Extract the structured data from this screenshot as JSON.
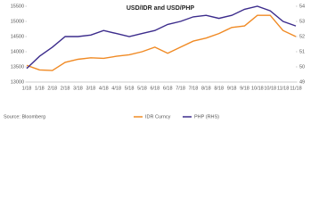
{
  "chart_data": {
    "type": "line",
    "title": "USD/IDR and USD/PHP",
    "source": "Source: Bloomberg",
    "categories": [
      "1/18",
      "1/18",
      "2/18",
      "2/18",
      "3/18",
      "3/18",
      "4/18",
      "4/18",
      "5/18",
      "5/18",
      "6/18",
      "6/18",
      "7/18",
      "7/18",
      "8/18",
      "8/18",
      "9/18",
      "9/18",
      "10/18",
      "10/18",
      "11/18",
      "11/18"
    ],
    "series": [
      {
        "name": "IDR Curncy",
        "color": "#f08a24",
        "values": [
          13550,
          13400,
          13380,
          13650,
          13750,
          13800,
          13780,
          13850,
          13900,
          14000,
          14150,
          13950,
          14150,
          14350,
          14450,
          14600,
          14800,
          14850,
          15200,
          15200,
          14700,
          14500
        ]
      },
      {
        "name": "PHP (RHS)",
        "color": "#3c2c8c",
        "axis": "y2",
        "values": [
          49.9,
          50.7,
          51.3,
          52.0,
          52.0,
          52.1,
          52.4,
          52.2,
          52.0,
          52.2,
          52.4,
          52.8,
          53.0,
          53.3,
          53.4,
          53.2,
          53.4,
          53.8,
          54.0,
          53.7,
          53.0,
          52.7
        ]
      }
    ],
    "ylim": [
      13000,
      15500
    ],
    "yticks": [
      13000,
      13500,
      14000,
      14500,
      15000,
      15500
    ],
    "y2lim": [
      49,
      54
    ],
    "y2ticks": [
      49,
      50,
      51,
      52,
      53,
      54
    ],
    "legend": "bottom"
  }
}
